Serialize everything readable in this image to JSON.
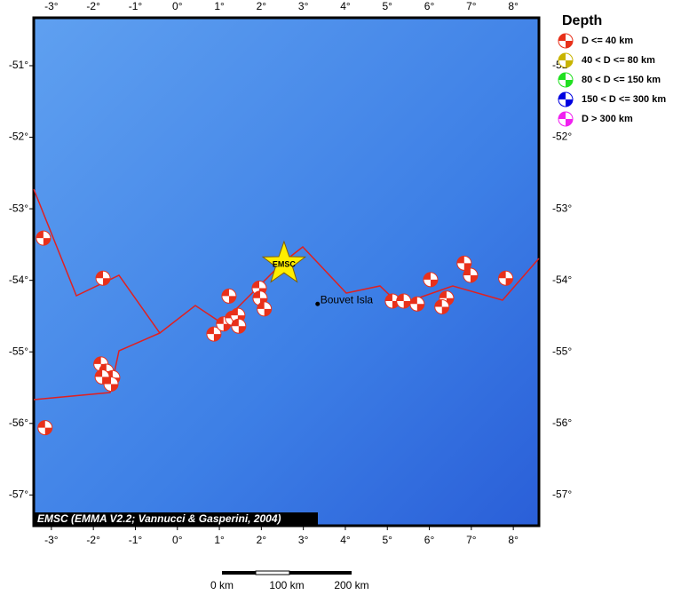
{
  "map": {
    "lon_range": [
      -3.42,
      8.61
    ],
    "lat_range": [
      -50.33,
      -57.43
    ],
    "lon_ticks": [
      {
        "value": -3,
        "label": "-3°"
      },
      {
        "value": -2,
        "label": "-2°"
      },
      {
        "value": -1,
        "label": "-1°"
      },
      {
        "value": 0,
        "label": "0°"
      },
      {
        "value": 1,
        "label": "1°"
      },
      {
        "value": 2,
        "label": "2°"
      },
      {
        "value": 3,
        "label": "3°"
      },
      {
        "value": 4,
        "label": "4°"
      },
      {
        "value": 5,
        "label": "5°"
      },
      {
        "value": 6,
        "label": "6°"
      },
      {
        "value": 7,
        "label": "7°"
      },
      {
        "value": 8,
        "label": "8°"
      }
    ],
    "lat_ticks": [
      {
        "value": -51,
        "label": "-51°"
      },
      {
        "value": -52,
        "label": "-52°"
      },
      {
        "value": -53,
        "label": "-53°"
      },
      {
        "value": -54,
        "label": "-54°"
      },
      {
        "value": -55,
        "label": "-55°"
      },
      {
        "value": -56,
        "label": "-56°"
      },
      {
        "value": -57,
        "label": "-57°"
      }
    ],
    "events": [
      {
        "lon": -3.19,
        "lat": -53.41
      },
      {
        "lon": -1.77,
        "lat": -53.97
      },
      {
        "lon": -3.15,
        "lat": -56.06
      },
      {
        "lon": -1.82,
        "lat": -55.17
      },
      {
        "lon": -1.69,
        "lat": -55.27
      },
      {
        "lon": -1.54,
        "lat": -55.36
      },
      {
        "lon": -1.58,
        "lat": -55.45
      },
      {
        "lon": -1.79,
        "lat": -55.35
      },
      {
        "lon": 1.23,
        "lat": -54.22
      },
      {
        "lon": 0.87,
        "lat": -54.75
      },
      {
        "lon": 1.1,
        "lat": -54.61
      },
      {
        "lon": 1.31,
        "lat": -54.53
      },
      {
        "lon": 1.44,
        "lat": -54.49
      },
      {
        "lon": 1.46,
        "lat": -54.64
      },
      {
        "lon": 1.95,
        "lat": -54.11
      },
      {
        "lon": 1.97,
        "lat": -54.25
      },
      {
        "lon": 2.07,
        "lat": -54.4
      },
      {
        "lon": 5.12,
        "lat": -54.29
      },
      {
        "lon": 5.39,
        "lat": -54.29
      },
      {
        "lon": 5.71,
        "lat": -54.33
      },
      {
        "lon": 6.41,
        "lat": -54.25
      },
      {
        "lon": 6.03,
        "lat": -53.99
      },
      {
        "lon": 6.83,
        "lat": -53.76
      },
      {
        "lon": 6.98,
        "lat": -53.93
      },
      {
        "lon": 7.82,
        "lat": -53.97
      },
      {
        "lon": 6.3,
        "lat": -54.37
      }
    ],
    "epicenter": {
      "label": "EMSC",
      "lon": 2.54,
      "lat": -53.77
    },
    "place": {
      "label": "Bouvet Isla",
      "lon": 3.34,
      "lat": -54.33
    },
    "credit": "EMSC (EMMA V2.2; Vannucci & Gasperini, 2004)"
  },
  "legend": {
    "title": "Depth",
    "items": [
      {
        "label": "D <= 40 km",
        "color": "#e8301a"
      },
      {
        "label": "40 < D <= 80 km",
        "color": "#c8b400"
      },
      {
        "label": "80 < D <= 150 km",
        "color": "#20e020"
      },
      {
        "label": "150 < D <= 300 km",
        "color": "#0000e0"
      },
      {
        "label": "D > 300 km",
        "color": "#f020f0"
      }
    ]
  },
  "scale_bar": {
    "labels": [
      "0 km",
      "100 km",
      "200 km"
    ]
  }
}
